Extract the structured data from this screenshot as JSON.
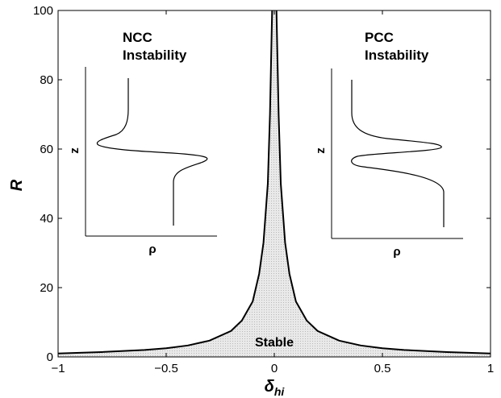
{
  "chart_data": {
    "type": "line",
    "title": "",
    "xlabel": "δ",
    "xlabel_subscript": "hi",
    "ylabel": "R",
    "xlim": [
      -1,
      1
    ],
    "ylim": [
      0,
      100
    ],
    "x_ticks": [
      -1,
      -0.5,
      0,
      0.5,
      1
    ],
    "x_tick_labels": [
      "−1",
      "−0.5",
      "0",
      "0.5",
      "1"
    ],
    "y_ticks": [
      0,
      20,
      40,
      60,
      80,
      100
    ],
    "y_tick_labels": [
      "0",
      "20",
      "40",
      "60",
      "80",
      "100"
    ],
    "grid": false,
    "series": [
      {
        "color": "#000000",
        "x": [
          -1,
          -0.8,
          -0.6,
          -0.5,
          -0.4,
          -0.3,
          -0.2,
          -0.15,
          -0.1,
          -0.07,
          -0.05,
          -0.03,
          -0.02,
          -0.015,
          -0.01,
          0.01,
          0.015,
          0.02,
          0.03,
          0.05,
          0.07,
          0.1,
          0.15,
          0.2,
          0.3,
          0.4,
          0.5,
          0.6,
          0.8,
          1
        ],
        "y": [
          1,
          1.4,
          2,
          2.5,
          3.3,
          4.7,
          7.5,
          10.5,
          16,
          24,
          33,
          50,
          70,
          85,
          100,
          100,
          85,
          70,
          50,
          33,
          24,
          16,
          10.5,
          7.5,
          4.7,
          3.3,
          2.5,
          2,
          1.4,
          1
        ]
      }
    ],
    "fill_color": "#d6d6d6",
    "annotations": [
      "Stable"
    ],
    "insets": [
      {
        "title_line1": "NCC",
        "title_line2": "Instability",
        "xlabel": "ρ",
        "ylabel": "z"
      },
      {
        "title_line1": "PCC",
        "title_line2": "Instability",
        "xlabel": "ρ",
        "ylabel": "z"
      }
    ]
  }
}
